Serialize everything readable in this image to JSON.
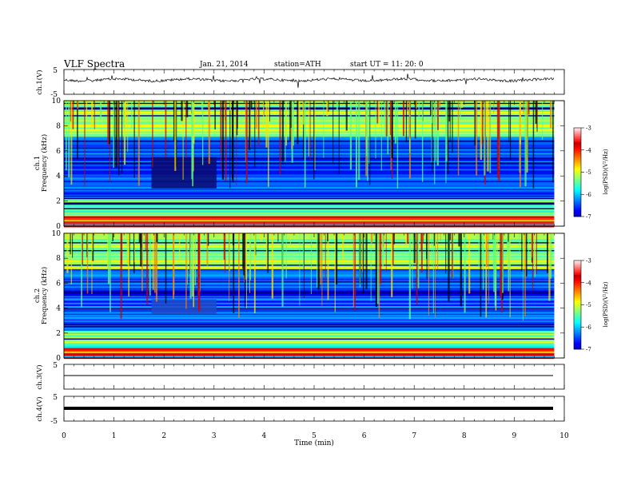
{
  "header": {
    "title": "VLF  Spectra",
    "date": "Jan. 21, 2014",
    "station": "station=ATH",
    "start": "start  UT  =   11: 20: 0"
  },
  "chart_data": [
    {
      "type": "line",
      "panel": "ch1-waveform",
      "ylabel": "ch.1(V)",
      "ylim": [
        -5,
        5
      ],
      "yticks": [
        "5",
        "-5"
      ],
      "xlim": [
        0,
        10
      ],
      "trace": "noisy signal near 0 V with spikes"
    },
    {
      "type": "heatmap",
      "panel": "ch1-spectrogram",
      "ylabel_top": "ch.1",
      "ylabel": "Frequency  (kHz)",
      "ylim": [
        0,
        10
      ],
      "yticks": [
        "0",
        "2",
        "4",
        "6",
        "8",
        "10"
      ],
      "xlim": [
        0,
        9.8
      ],
      "colorbar": {
        "label": "log(PSD)(V²/Hz)",
        "range": [
          -7,
          -3
        ],
        "ticks": [
          "-3",
          "-4",
          "-5",
          "-6",
          "-7"
        ]
      }
    },
    {
      "type": "heatmap",
      "panel": "ch2-spectrogram",
      "ylabel_top": "ch.2",
      "ylabel": "Frequency  (kHz)",
      "ylim": [
        0,
        10
      ],
      "yticks": [
        "0",
        "2",
        "4",
        "6",
        "8",
        "10"
      ],
      "xlim": [
        0,
        9.8
      ],
      "colorbar": {
        "label": "log(PSD)(V²/Hz)",
        "range": [
          -7,
          -3
        ],
        "ticks": [
          "-3",
          "-4",
          "-5",
          "-6",
          "-7"
        ]
      }
    },
    {
      "type": "line",
      "panel": "ch3-waveform",
      "ylabel": "ch.3(V)",
      "ylim": [
        -5,
        5
      ],
      "yticks": [
        "5",
        "-5"
      ],
      "trace": "flat near 0 V"
    },
    {
      "type": "line",
      "panel": "ch4-waveform",
      "ylabel": "ch.4(V)",
      "ylim": [
        -5,
        5
      ],
      "yticks": [
        "5",
        "-5"
      ],
      "trace": "thick flat near 0 V"
    }
  ],
  "xaxis": {
    "label": "Time  (min)",
    "range": [
      0,
      10
    ],
    "ticks": [
      "0",
      "1",
      "2",
      "3",
      "4",
      "5",
      "6",
      "7",
      "8",
      "9",
      "10"
    ]
  }
}
